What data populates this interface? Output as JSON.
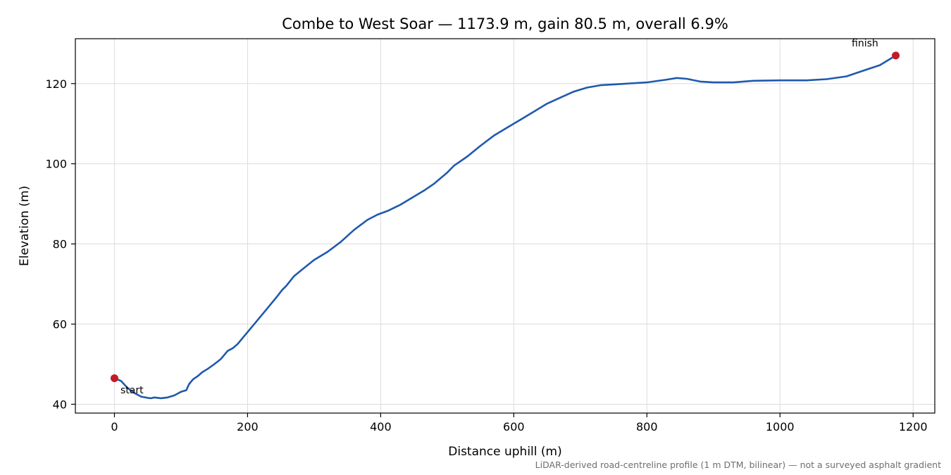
{
  "chart_data": {
    "type": "line",
    "title": "Combe to West Soar — 1173.9 m, gain 80.5 m, overall 6.9%",
    "xlabel": "Distance uphill (m)",
    "ylabel": "Elevation (m)",
    "xlim": [
      -58.7,
      1232.6
    ],
    "ylim": [
      37.8,
      131.2
    ],
    "xticks": [
      0,
      200,
      400,
      600,
      800,
      1000,
      1200
    ],
    "yticks": [
      40,
      60,
      80,
      100,
      120
    ],
    "grid": true,
    "line_color": "#1f5aad",
    "marker_color": "#c21b28",
    "footnote": "LiDAR-derived road-centreline profile (1 m DTM, bilinear) — not a surveyed asphalt gradient",
    "annotations": {
      "start": {
        "label": "start",
        "x": 0,
        "y": 46.5
      },
      "finish": {
        "label": "finish",
        "x": 1173.9,
        "y": 127.0
      }
    },
    "series": [
      {
        "x": [
          0,
          10,
          20,
          30,
          40,
          50,
          55,
          60,
          70,
          80,
          90,
          100,
          108,
          112,
          118,
          125,
          132,
          140,
          150,
          160,
          170,
          178,
          185,
          195,
          210,
          230,
          245,
          252,
          258,
          270,
          285,
          300,
          320,
          340,
          360,
          380,
          395,
          410,
          430,
          450,
          465,
          480,
          500,
          510,
          530,
          550,
          570,
          590,
          610,
          630,
          650,
          670,
          690,
          710,
          730,
          760,
          800,
          830,
          845,
          860,
          880,
          900,
          930,
          960,
          1000,
          1040,
          1070,
          1100,
          1130,
          1150,
          1173.9
        ],
        "y": [
          46.5,
          45.8,
          44.0,
          42.8,
          41.9,
          41.6,
          41.5,
          41.7,
          41.5,
          41.7,
          42.2,
          43.1,
          43.5,
          45.0,
          46.2,
          47.0,
          48.0,
          48.8,
          50.0,
          51.3,
          53.3,
          54.0,
          55.0,
          57.0,
          60.0,
          64.0,
          67.0,
          68.5,
          69.5,
          72.0,
          74.0,
          76.0,
          78.0,
          80.5,
          83.5,
          86.0,
          87.3,
          88.2,
          89.8,
          91.8,
          93.3,
          95.0,
          97.8,
          99.5,
          101.8,
          104.5,
          107.0,
          109.0,
          111.0,
          113.0,
          115.0,
          116.5,
          118.0,
          119.0,
          119.6,
          119.9,
          120.3,
          121.0,
          121.4,
          121.2,
          120.5,
          120.3,
          120.3,
          120.7,
          120.8,
          120.8,
          121.1,
          121.8,
          123.5,
          124.6,
          127.0
        ]
      }
    ]
  }
}
